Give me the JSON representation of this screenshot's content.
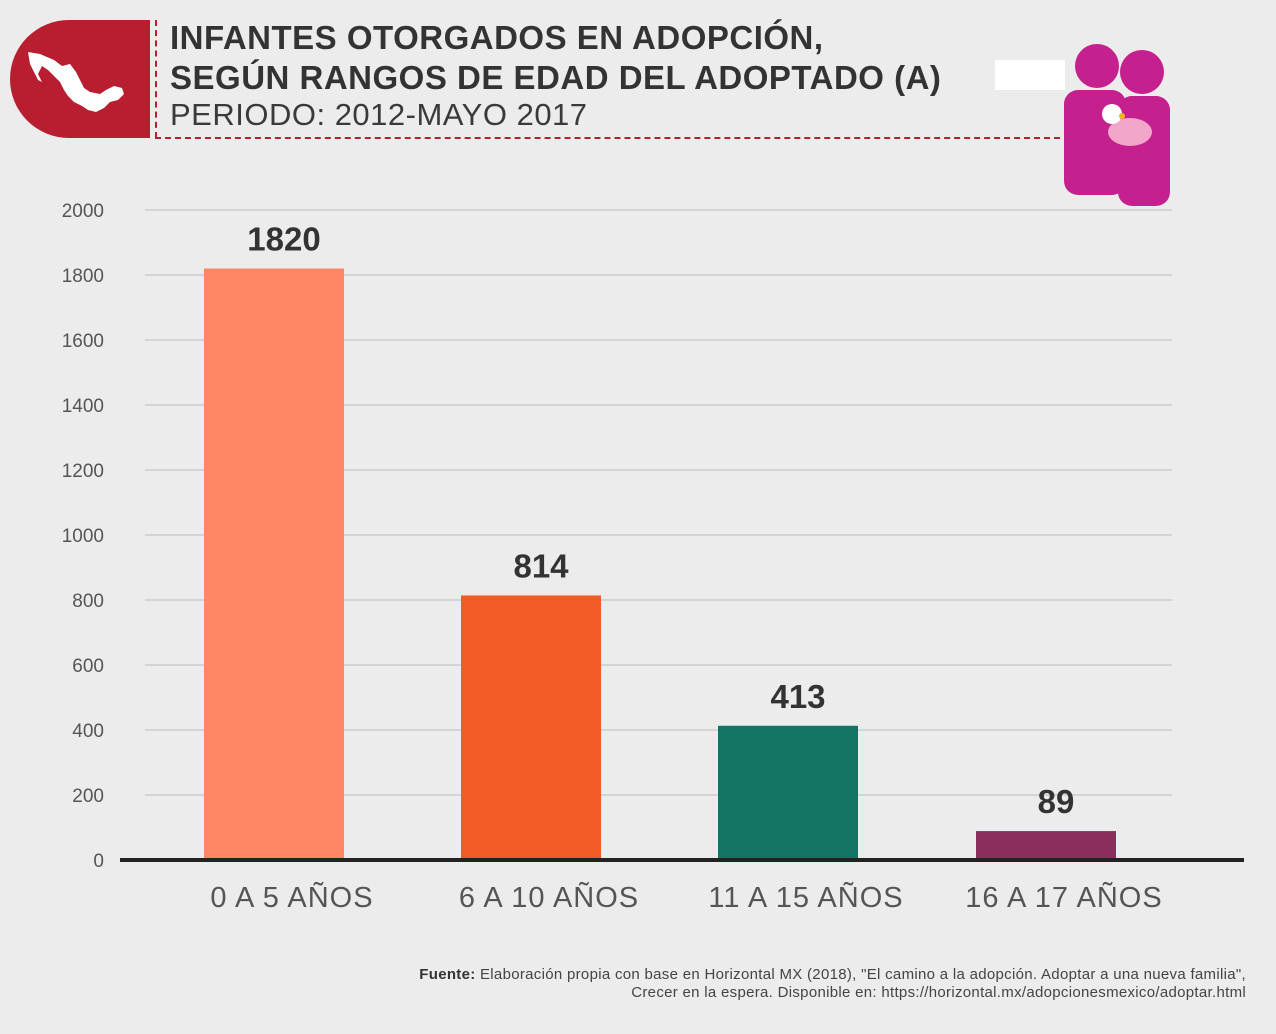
{
  "header": {
    "title_line1": "INFANTES OTORGADOS EN ADOPCIÓN,",
    "title_line2": "SEGÚN RANGOS DE EDAD DEL ADOPTADO (A)",
    "subtitle": "PERIODO: 2012-MAYO 2017",
    "map_icon": "mexico-map-icon",
    "family_icon": "family-icon"
  },
  "colors": {
    "brand_red": "#b91e30",
    "icon_magenta": "#c4208e",
    "bars": [
      "#ff8763",
      "#f25a26",
      "#127462",
      "#8a2f5c"
    ]
  },
  "chart_data": {
    "type": "bar",
    "title": "INFANTES OTORGADOS EN ADOPCIÓN, SEGÚN RANGOS DE EDAD DEL ADOPTADO (A)",
    "subtitle": "PERIODO: 2012-MAYO 2017",
    "categories": [
      "0 A 5 AÑOS",
      "6 A 10 AÑOS",
      "11 A 15 AÑOS",
      "16 A 17 AÑOS"
    ],
    "values": [
      1820,
      814,
      413,
      89
    ],
    "data_labels": [
      "1820",
      "814",
      "413",
      "89"
    ],
    "yticks": [
      "0",
      "200",
      "400",
      "600",
      "800",
      "1000",
      "1200",
      "1400",
      "1600",
      "1800",
      "2000"
    ],
    "ylim": [
      0,
      2000
    ],
    "xlabel": "",
    "ylabel": "",
    "grid": true,
    "legend": "none"
  },
  "source": {
    "label": "Fuente:",
    "line1": "Elaboración propia con base en Horizontal MX (2018), \"El camino a la adopción. Adoptar a una nueva familia\",",
    "line2": "Crecer en la espera. Disponible en: https://horizontal.mx/adopcionesmexico/adoptar.html"
  }
}
